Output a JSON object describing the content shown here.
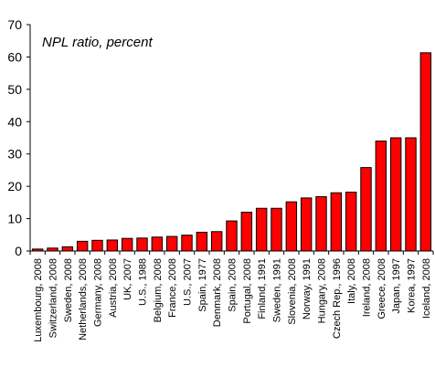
{
  "chart_data": {
    "type": "bar",
    "title": "NPL ratio, percent",
    "ylim": [
      0,
      70
    ],
    "yticks": [
      0,
      10,
      20,
      30,
      40,
      50,
      60,
      70
    ],
    "grid": false,
    "legend": "none",
    "bar_color": "#ff0000",
    "bar_edge_color": "#000000",
    "categories": [
      "Luxembourg, 2008",
      "Switzerland, 2008",
      "Sweden, 2008",
      "Netherlands, 2008",
      "Germany, 2008",
      "Austria, 2008",
      "UK, 2007",
      "U.S., 1988",
      "Belgium, 2008",
      "France, 2008",
      "U.S., 2007",
      "Spain, 1977",
      "Denmark, 2008",
      "Spain, 2008",
      "Portugal, 2008",
      "Finland, 1991",
      "Sweden, 1991",
      "Slovenia, 2008",
      "Norway, 1991",
      "Hungary, 2008",
      "Czech Rep., 1996",
      "Italy, 2008",
      "Ireland, 2008",
      "Greece, 2008",
      "Japan, 1997",
      "Korea, 1997",
      "Iceland, 2008"
    ],
    "values": [
      0.6,
      0.9,
      1.3,
      3.0,
      3.3,
      3.4,
      3.9,
      4.0,
      4.3,
      4.5,
      4.9,
      5.8,
      6.0,
      9.3,
      12.0,
      13.2,
      13.2,
      15.2,
      16.4,
      16.8,
      18.0,
      18.2,
      25.8,
      34.0,
      35.0,
      35.0,
      61.3
    ]
  }
}
